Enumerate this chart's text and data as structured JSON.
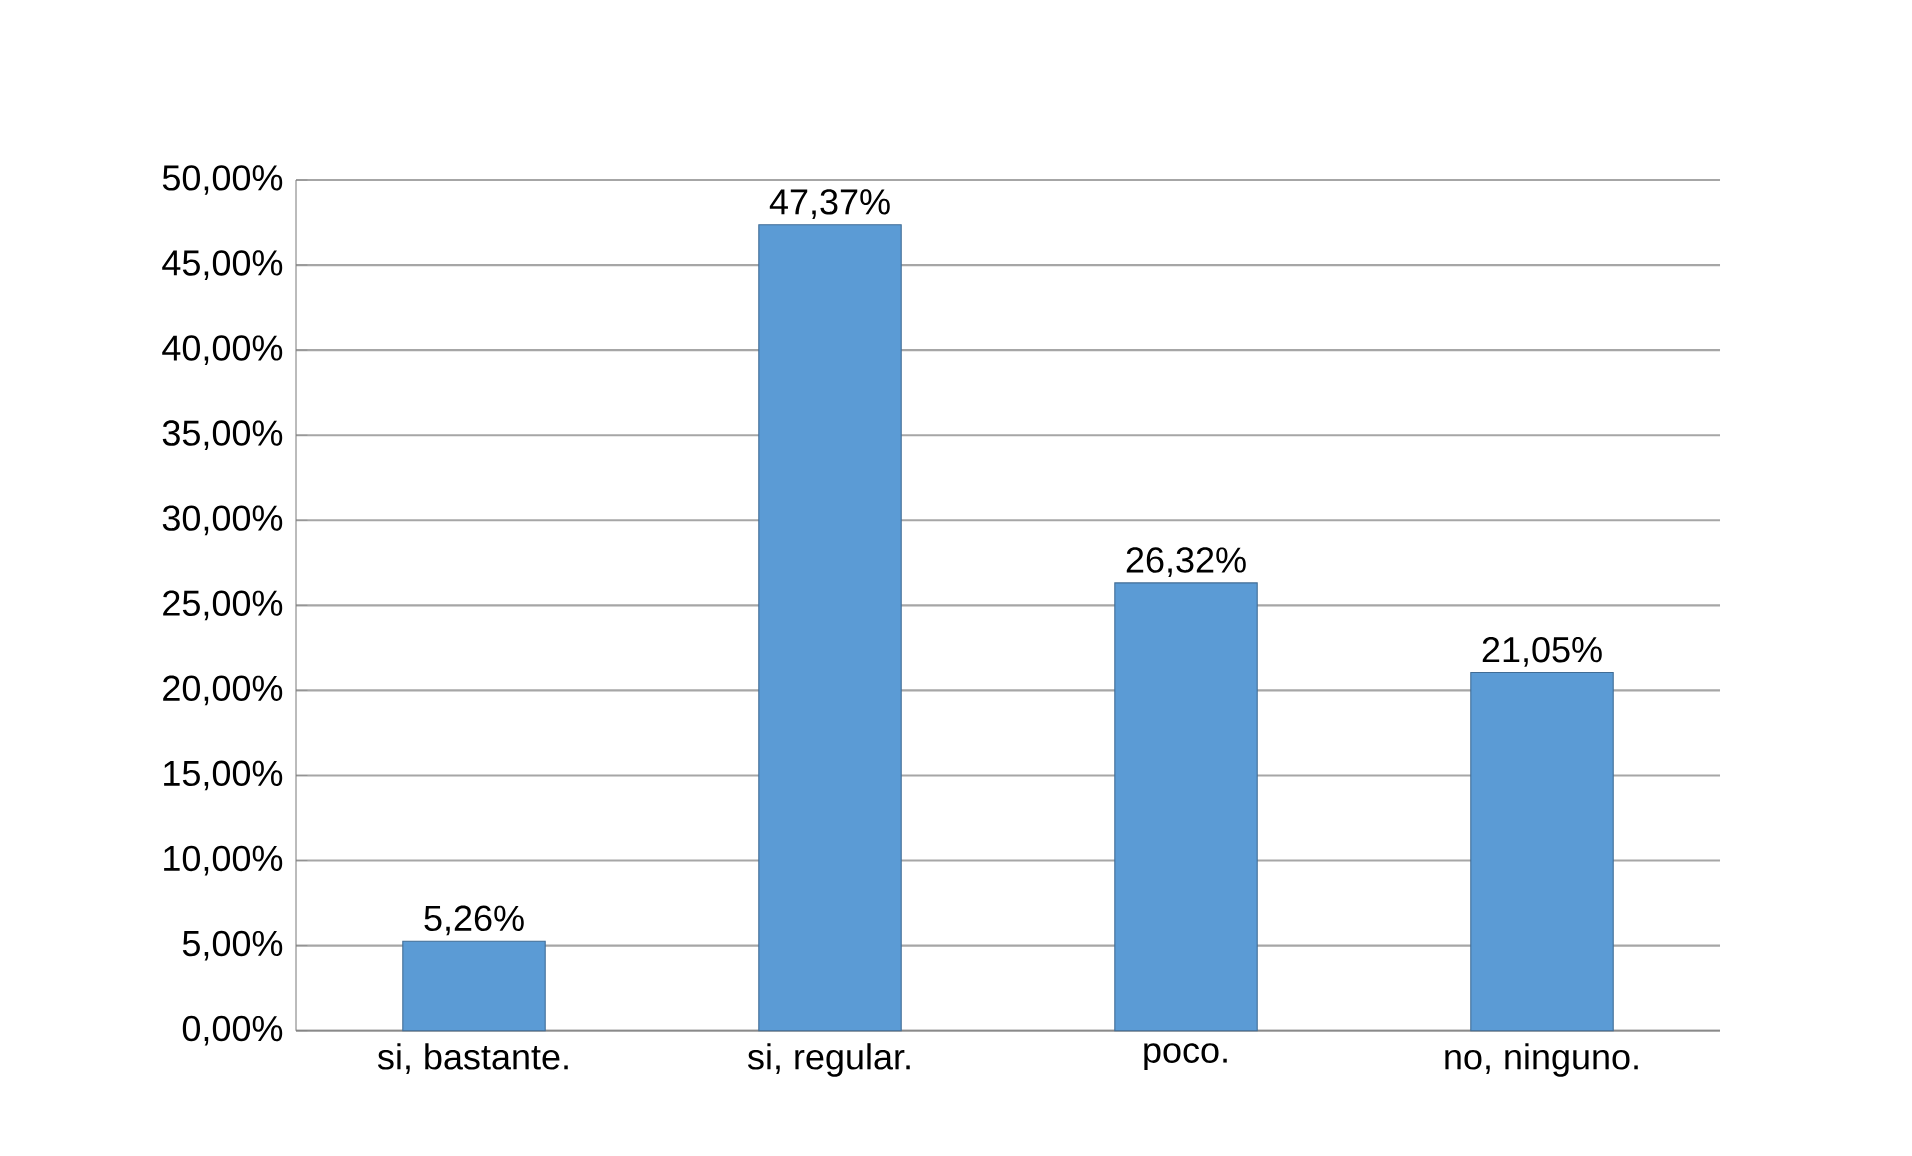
{
  "chart_data": {
    "type": "bar",
    "categories": [
      "si, bastante.",
      "si, regular.",
      "poco.",
      "no, ninguno."
    ],
    "values": [
      5.26,
      47.37,
      26.32,
      21.05
    ],
    "value_labels": [
      "5,26%",
      "47,37%",
      "26,32%",
      "21,05%"
    ],
    "color": "#5b9bd5",
    "ylim": [
      0,
      50
    ],
    "yticks": [
      {
        "value": 0,
        "label": "0,00%"
      },
      {
        "value": 5,
        "label": "5,00%"
      },
      {
        "value": 10,
        "label": "10,00%"
      },
      {
        "value": 15,
        "label": "15,00%"
      },
      {
        "value": 20,
        "label": "20,00%"
      },
      {
        "value": 25,
        "label": "25,00%"
      },
      {
        "value": 30,
        "label": "30,00%"
      },
      {
        "value": 35,
        "label": "35,00%"
      },
      {
        "value": 40,
        "label": "40,00%"
      },
      {
        "value": 45,
        "label": "45,00%"
      },
      {
        "value": 50,
        "label": "50,00%"
      }
    ],
    "grid": "y"
  }
}
